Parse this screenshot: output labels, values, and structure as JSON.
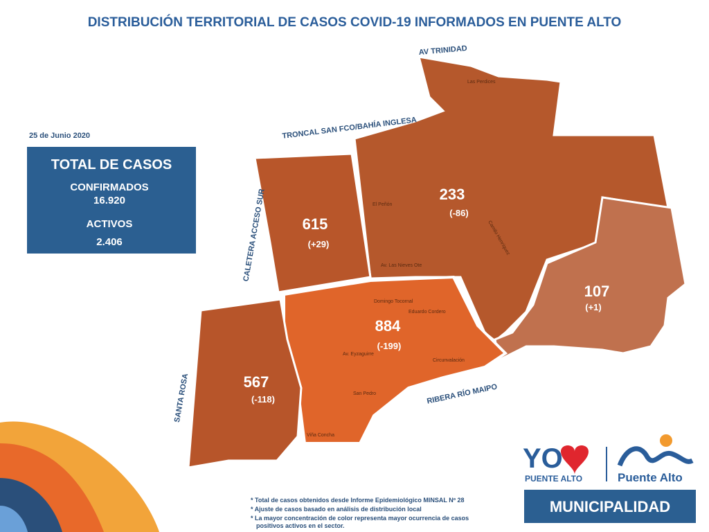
{
  "header": {
    "title": "DISTRIBUCIÓN TERRITORIAL DE CASOS COVID-19 INFORMADOS EN PUENTE ALTO"
  },
  "summary": {
    "date": "25 de Junio 2020",
    "title": "TOTAL DE CASOS",
    "confirmed_label": "CONFIRMADOS",
    "confirmed": "16.920",
    "active_label": "ACTIVOS",
    "active": "2.406"
  },
  "sectors": [
    {
      "cases": 233,
      "change": "(-86)"
    },
    {
      "cases": 615,
      "change": "(+29)"
    },
    {
      "cases": 107,
      "change": "(+1)"
    },
    {
      "cases": 884,
      "change": "(-199)"
    },
    {
      "cases": 567,
      "change": "(-118)"
    }
  ],
  "roads": [
    "AV TRINIDAD",
    "TRONCAL SAN FCO/BAHÍA INGLESA",
    "CALETERA ACCESO SUR",
    "SANTA ROSA",
    "RIBERA RÍO MAIPO"
  ],
  "streets": [
    "Domingo Tocornal",
    "Eduardo Cordero",
    "Av. Eyzaguirre",
    "San Pedro",
    "Circunvalación",
    "Av. Las Nieves Ote",
    "Camilo Henríquez",
    "El Peñón",
    "Las Perdices",
    "Viña Concha"
  ],
  "logos": {
    "yo": "YO",
    "yo_sub": "PUENTE ALTO",
    "city": "Puente Alto",
    "banner": "MUNICIPALIDAD"
  },
  "footnotes": [
    "* Total de casos obtenidos desde Informe Epidemiológico MINSAL Nº 28",
    "* Ajuste de casos basado en análisis de distribución local",
    "* La mayor concentración de color representa mayor ocurrencia de casos",
    "positivos activos en el sector."
  ]
}
